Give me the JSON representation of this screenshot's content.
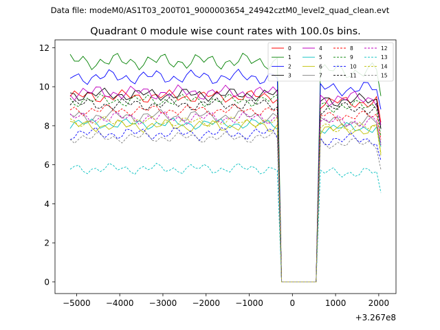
{
  "suptitle": "Data file: modeM0/AS1T03_200T01_9000003654_24942cztM0_level2_quad_clean.evt",
  "chart_data": {
    "type": "line",
    "title": "Quadrant 0 module wise count rates with 100.0s bins.",
    "xlabel": "",
    "ylabel": "",
    "x_offset_label": "+3.267e8",
    "xlim": [
      -5500,
      2400
    ],
    "ylim": [
      -0.6,
      12.4
    ],
    "xticks": [
      -5000,
      -4000,
      -3000,
      -2000,
      -1000,
      0,
      1000,
      2000
    ],
    "xtick_labels": [
      "−5000",
      "−4000",
      "−3000",
      "−2000",
      "−1000",
      "0",
      "1000",
      "2000"
    ],
    "yticks": [
      0,
      2,
      4,
      6,
      8,
      10,
      12
    ],
    "ytick_labels": [
      "0",
      "2",
      "4",
      "6",
      "8",
      "10",
      "12"
    ],
    "grid": false,
    "legend_position": "top-right",
    "x_start": -5150,
    "x_step": 100,
    "gap_start": -450,
    "gap_end": 650,
    "series": [
      {
        "name": "0",
        "color": "#ff0000",
        "dash": "solid",
        "base_pre": 9.5,
        "base_post": 9.2,
        "amp": 0.35
      },
      {
        "name": "1",
        "color": "#008000",
        "dash": "solid",
        "base_pre": 11.3,
        "base_post": 10.8,
        "amp": 0.45
      },
      {
        "name": "2",
        "color": "#0000ff",
        "dash": "solid",
        "base_pre": 10.5,
        "base_post": 9.9,
        "amp": 0.4
      },
      {
        "name": "3",
        "color": "#000000",
        "dash": "solid",
        "base_pre": 9.6,
        "base_post": 9.3,
        "amp": 0.35
      },
      {
        "name": "4",
        "color": "#bf00bf",
        "dash": "solid",
        "base_pre": 9.7,
        "base_post": 9.4,
        "amp": 0.4
      },
      {
        "name": "5",
        "color": "#00bfbf",
        "dash": "solid",
        "base_pre": 8.1,
        "base_post": 7.9,
        "amp": 0.3
      },
      {
        "name": "6",
        "color": "#bfbf00",
        "dash": "solid",
        "base_pre": 8.0,
        "base_post": 7.8,
        "amp": 0.35
      },
      {
        "name": "7",
        "color": "#808080",
        "dash": "solid",
        "base_pre": 8.5,
        "base_post": 8.2,
        "amp": 0.35
      },
      {
        "name": "8",
        "color": "#ff0000",
        "dash": "dashed",
        "base_pre": 8.8,
        "base_post": 8.5,
        "amp": 0.3
      },
      {
        "name": "9",
        "color": "#008000",
        "dash": "dashed",
        "base_pre": 9.3,
        "base_post": 9.0,
        "amp": 0.35
      },
      {
        "name": "10",
        "color": "#0000ff",
        "dash": "dashed",
        "base_pre": 7.6,
        "base_post": 7.3,
        "amp": 0.35
      },
      {
        "name": "11",
        "color": "#000000",
        "dash": "dashed",
        "base_pre": 9.1,
        "base_post": 8.9,
        "amp": 0.35
      },
      {
        "name": "12",
        "color": "#bf00bf",
        "dash": "dashed",
        "base_pre": 8.4,
        "base_post": 8.2,
        "amp": 0.35
      },
      {
        "name": "13",
        "color": "#00bfbf",
        "dash": "dashed",
        "base_pre": 5.8,
        "base_post": 5.6,
        "amp": 0.3
      },
      {
        "name": "14",
        "color": "#bfbf00",
        "dash": "dashed",
        "base_pre": 8.2,
        "base_post": 7.9,
        "amp": 0.3
      },
      {
        "name": "15",
        "color": "#808080",
        "dash": "dashed",
        "base_pre": 7.4,
        "base_post": 7.1,
        "amp": 0.3
      }
    ]
  }
}
